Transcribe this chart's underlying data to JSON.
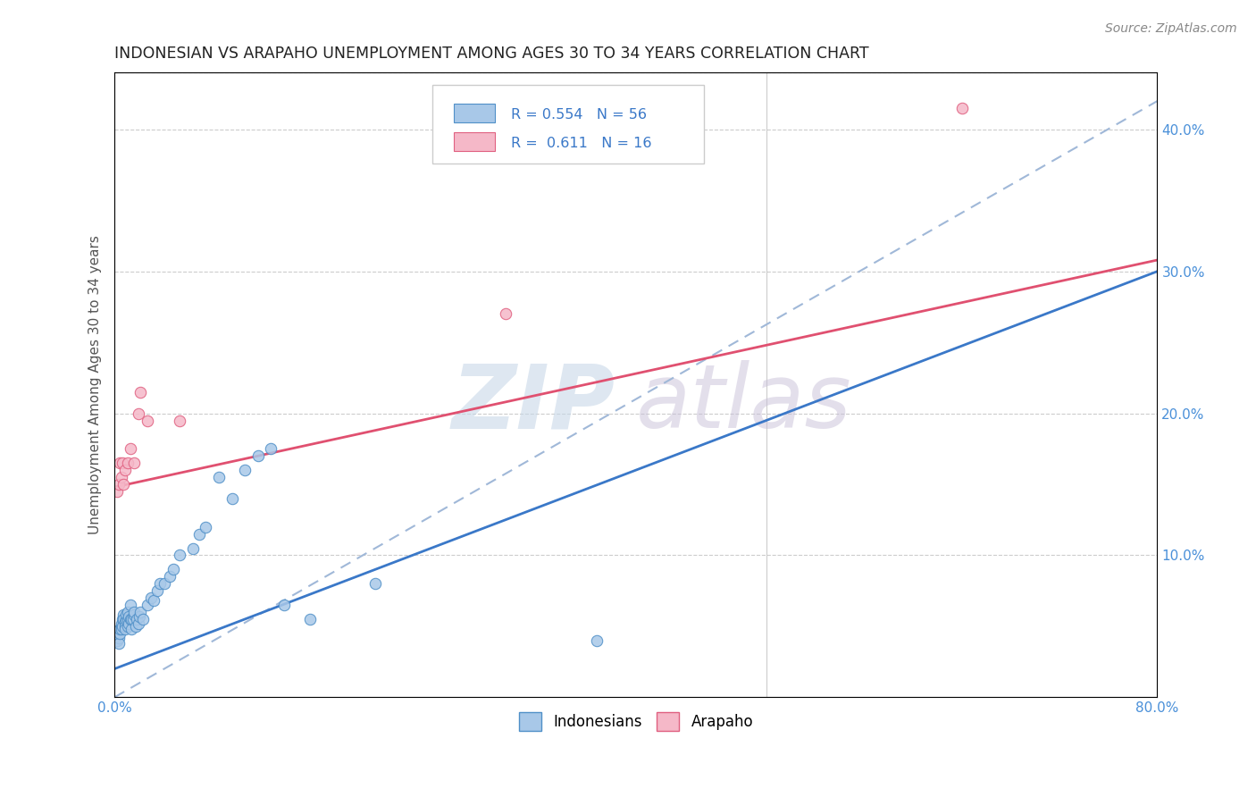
{
  "title": "INDONESIAN VS ARAPAHO UNEMPLOYMENT AMONG AGES 30 TO 34 YEARS CORRELATION CHART",
  "source": "Source: ZipAtlas.com",
  "ylabel": "Unemployment Among Ages 30 to 34 years",
  "xlim": [
    0.0,
    0.8
  ],
  "ylim": [
    0.0,
    0.44
  ],
  "xtick_vals": [
    0.0,
    0.1,
    0.2,
    0.3,
    0.4,
    0.5,
    0.6,
    0.7,
    0.8
  ],
  "ytick_vals": [
    0.0,
    0.1,
    0.2,
    0.3,
    0.4
  ],
  "ytick_labels": [
    "",
    "10.0%",
    "20.0%",
    "30.0%",
    "40.0%"
  ],
  "xtick_labels": [
    "0.0%",
    "",
    "",
    "",
    "",
    "",
    "",
    "",
    "80.0%"
  ],
  "indonesian_color": "#a8c8e8",
  "arapaho_color": "#f5b8c8",
  "indonesian_edge": "#5090c8",
  "arapaho_edge": "#e06080",
  "trendline_indonesian_color": "#3a78c8",
  "trendline_arapaho_color": "#e05070",
  "trendline_combined_color": "#a0b8d8",
  "watermark_zip_color": "#c8d8e8",
  "watermark_atlas_color": "#c8c0d8",
  "indonesian_x": [
    0.002,
    0.003,
    0.003,
    0.004,
    0.004,
    0.005,
    0.005,
    0.005,
    0.006,
    0.006,
    0.007,
    0.007,
    0.008,
    0.008,
    0.008,
    0.009,
    0.009,
    0.01,
    0.01,
    0.01,
    0.011,
    0.011,
    0.012,
    0.012,
    0.013,
    0.013,
    0.014,
    0.015,
    0.015,
    0.016,
    0.017,
    0.018,
    0.019,
    0.02,
    0.022,
    0.025,
    0.028,
    0.03,
    0.033,
    0.035,
    0.038,
    0.042,
    0.045,
    0.05,
    0.06,
    0.065,
    0.07,
    0.08,
    0.09,
    0.1,
    0.11,
    0.12,
    0.13,
    0.15,
    0.2,
    0.37
  ],
  "indonesian_y": [
    0.04,
    0.042,
    0.038,
    0.045,
    0.048,
    0.05,
    0.052,
    0.048,
    0.055,
    0.05,
    0.058,
    0.055,
    0.053,
    0.05,
    0.048,
    0.055,
    0.058,
    0.06,
    0.05,
    0.055,
    0.052,
    0.057,
    0.055,
    0.065,
    0.048,
    0.055,
    0.055,
    0.058,
    0.06,
    0.05,
    0.055,
    0.052,
    0.057,
    0.06,
    0.055,
    0.065,
    0.07,
    0.068,
    0.075,
    0.08,
    0.08,
    0.085,
    0.09,
    0.1,
    0.105,
    0.115,
    0.12,
    0.155,
    0.14,
    0.16,
    0.17,
    0.175,
    0.065,
    0.055,
    0.08,
    0.04
  ],
  "arapaho_x": [
    0.002,
    0.003,
    0.004,
    0.005,
    0.006,
    0.007,
    0.008,
    0.01,
    0.012,
    0.015,
    0.018,
    0.02,
    0.025,
    0.05,
    0.3,
    0.65
  ],
  "arapaho_y": [
    0.145,
    0.15,
    0.165,
    0.155,
    0.165,
    0.15,
    0.16,
    0.165,
    0.175,
    0.165,
    0.2,
    0.215,
    0.195,
    0.195,
    0.27,
    0.415
  ],
  "ind_trend_x0": 0.0,
  "ind_trend_y0": 0.02,
  "ind_trend_x1": 0.8,
  "ind_trend_y1": 0.3,
  "ara_trend_x0": 0.0,
  "ara_trend_y0": 0.148,
  "ara_trend_x1": 0.8,
  "ara_trend_y1": 0.308,
  "dash_trend_x0": 0.0,
  "dash_trend_y0": 0.05,
  "dash_trend_x1": 0.8,
  "dash_trend_y1": 0.42
}
